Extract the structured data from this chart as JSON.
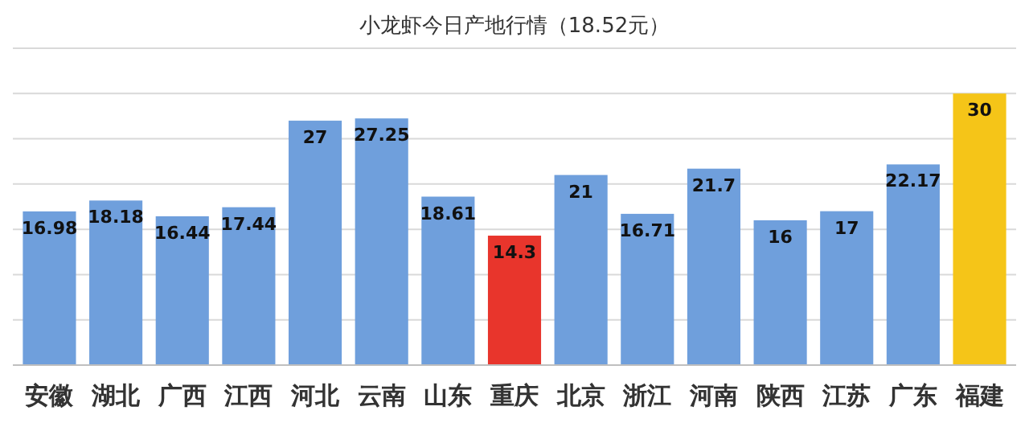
{
  "chart_data": {
    "type": "bar",
    "title": "小龙虾今日产地行情（18.52元）",
    "categories": [
      "安徽",
      "湖北",
      "广西",
      "江西",
      "河北",
      "云南",
      "山东",
      "重庆",
      "北京",
      "浙江",
      "河南",
      "陕西",
      "江苏",
      "广东",
      "福建"
    ],
    "values": [
      16.98,
      18.18,
      16.44,
      17.44,
      27,
      27.25,
      18.61,
      14.3,
      21,
      16.71,
      21.7,
      16,
      17,
      22.17,
      30
    ],
    "colors": [
      "#6f9fdc",
      "#6f9fdc",
      "#6f9fdc",
      "#6f9fdc",
      "#6f9fdc",
      "#6f9fdc",
      "#6f9fdc",
      "#e8352c",
      "#6f9fdc",
      "#6f9fdc",
      "#6f9fdc",
      "#6f9fdc",
      "#6f9fdc",
      "#6f9fdc",
      "#f5c518"
    ],
    "ylim": [
      0,
      35
    ],
    "yticks": [
      {
        "value": 0,
        "label": null
      },
      {
        "value": 5,
        "label": null
      },
      {
        "value": 10,
        "label": null
      },
      {
        "value": 15,
        "label": null
      },
      {
        "value": 20,
        "label": null
      },
      {
        "value": 25,
        "label": null
      },
      {
        "value": 30,
        "label": null
      },
      {
        "value": 35,
        "label": null
      }
    ],
    "grid": "y",
    "data_labels": true,
    "tick_labels": "x"
  }
}
